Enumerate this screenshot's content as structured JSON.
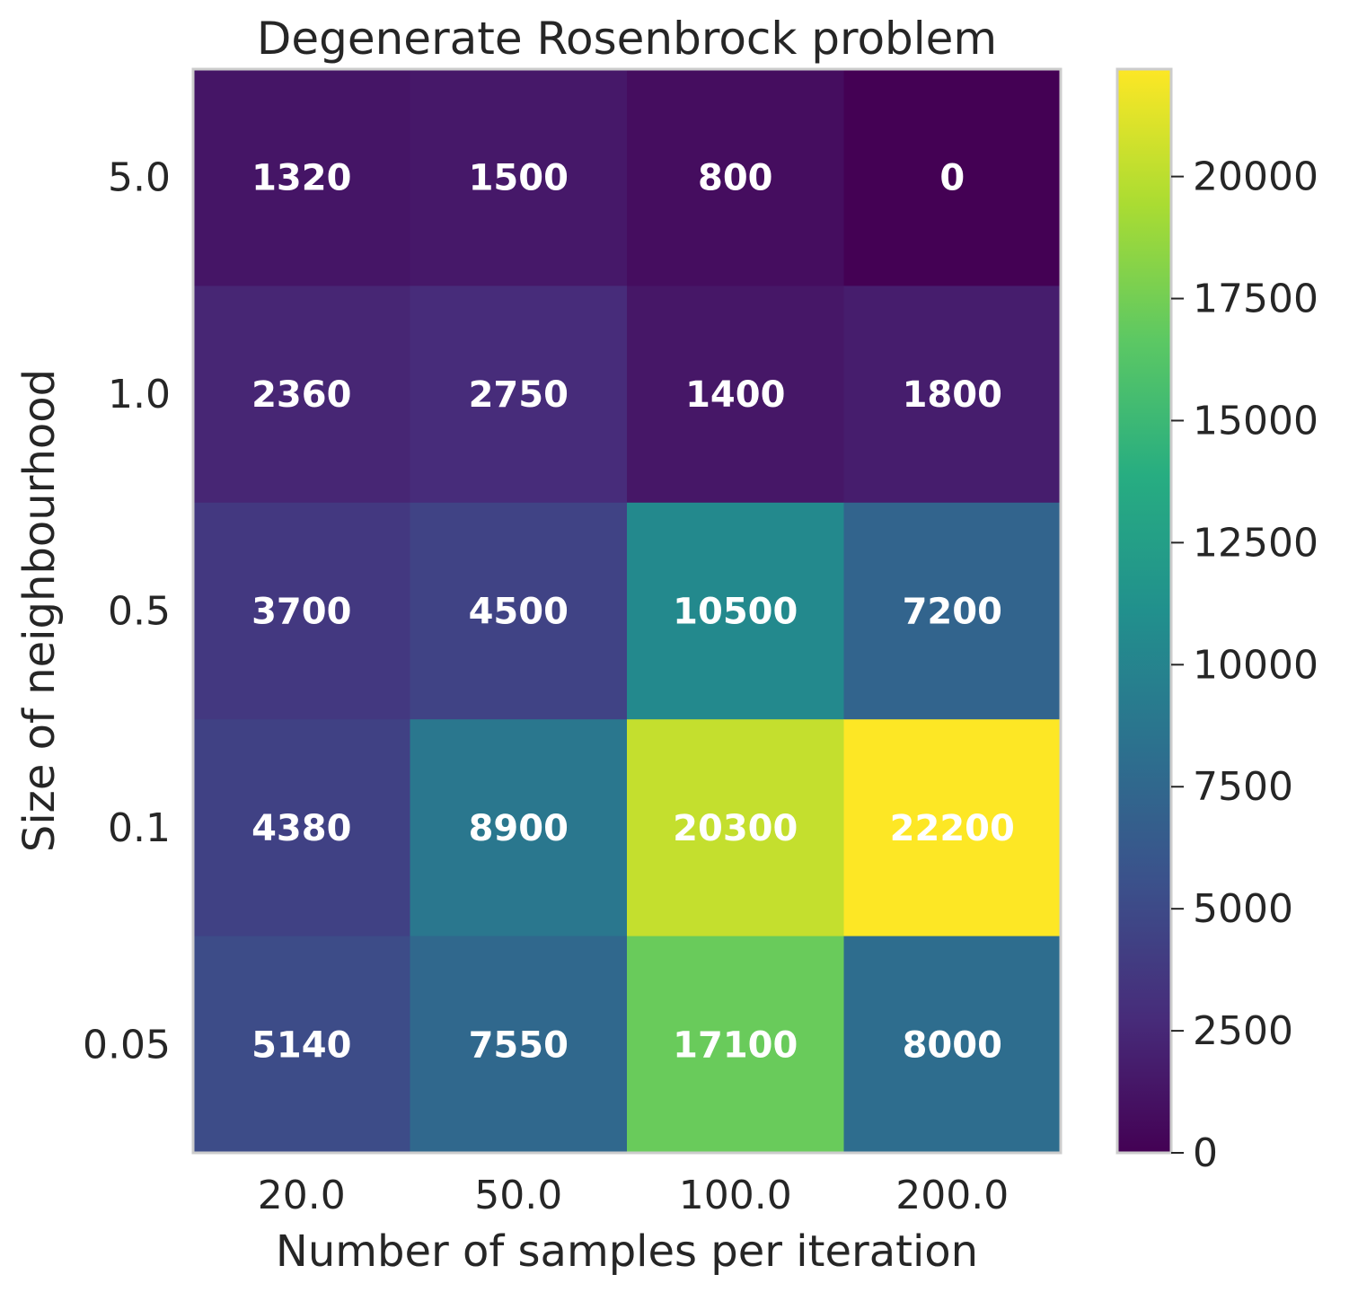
{
  "chart_data": {
    "type": "heatmap",
    "title": "Degenerate Rosenbrock problem",
    "xlabel": "Number of samples per iteration",
    "ylabel": "Size of neighbourhood",
    "x_categories": [
      "20.0",
      "50.0",
      "100.0",
      "200.0"
    ],
    "y_categories": [
      "5.0",
      "1.0",
      "0.5",
      "0.1",
      "0.05"
    ],
    "values": [
      [
        1320,
        1500,
        800,
        0
      ],
      [
        2360,
        2750,
        1400,
        1800
      ],
      [
        3700,
        4500,
        10500,
        7200
      ],
      [
        4380,
        8900,
        20300,
        22200
      ],
      [
        5140,
        7550,
        17100,
        8000
      ]
    ],
    "value_labels": [
      [
        "1320",
        "1500",
        "800",
        "0"
      ],
      [
        "2360",
        "2750",
        "1400",
        "1800"
      ],
      [
        "3700",
        "4500",
        "10500",
        "7200"
      ],
      [
        "4380",
        "8900",
        "20300",
        "22200"
      ],
      [
        "5140",
        "7550",
        "17100",
        "8000"
      ]
    ],
    "colormap": "viridis",
    "colorbar": {
      "range": [
        0,
        22200
      ],
      "ticks": [
        0,
        2500,
        5000,
        7500,
        10000,
        12500,
        15000,
        17500,
        20000
      ],
      "tick_labels": [
        "0",
        "2500",
        "5000",
        "7500",
        "10000",
        "12500",
        "15000",
        "17500",
        "20000"
      ]
    },
    "grid": false,
    "colors": {
      "text": "#262626",
      "frame": "#cccccc",
      "cell_text": "#ffffff"
    }
  }
}
